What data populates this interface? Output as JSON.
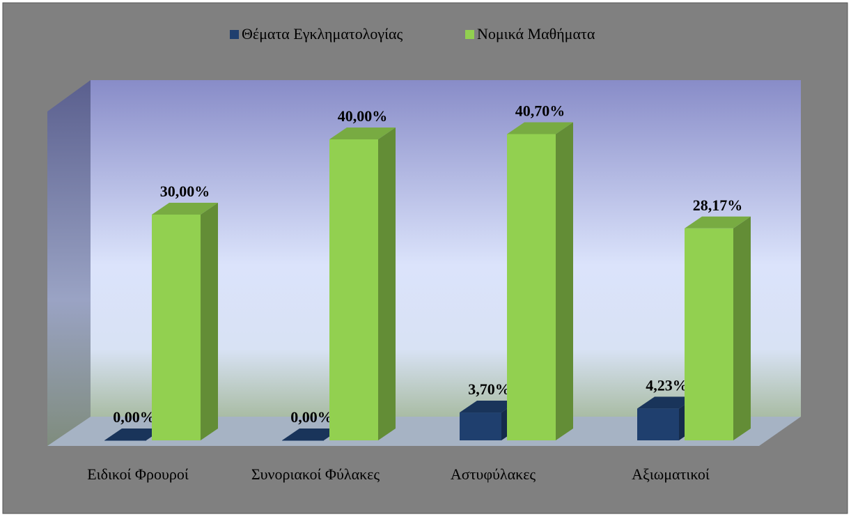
{
  "chart_data": {
    "type": "bar3d",
    "categories": [
      "Ειδικοί Φρουροί",
      "Συνοριακοί Φύλακες",
      "Αστυφύλακες",
      "Αξιωματικοί"
    ],
    "series": [
      {
        "name": "Θέματα Εγκληματολογίας",
        "color": "#1f3f6e",
        "values": [
          0,
          0,
          3.7,
          4.23
        ],
        "value_labels": [
          "0,00%",
          "0,00%",
          "3,70%",
          "4,23%"
        ]
      },
      {
        "name": "Νομικά Μαθήματα",
        "color": "#92d050",
        "values": [
          30,
          40,
          40.7,
          28.17
        ],
        "value_labels": [
          "30,00%",
          "40,00%",
          "40,70%",
          "28,17%"
        ]
      }
    ],
    "ylim": [
      0,
      45
    ],
    "legend": "top"
  }
}
